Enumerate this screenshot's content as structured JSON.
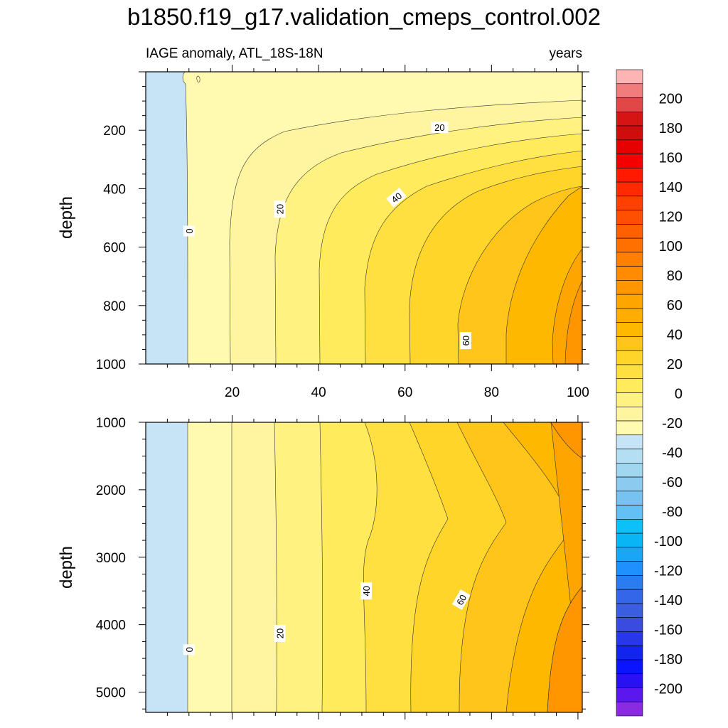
{
  "title": "b1850.f19_g17.validation_cmeps_control.002",
  "subtitle_left": "IAGE anomaly, ATL_18S-18N",
  "subtitle_right": "years",
  "chart_data": [
    {
      "type": "heatmap",
      "panel": "upper",
      "ylabel": "depth",
      "xlim": [
        0,
        101
      ],
      "ylim": [
        1000,
        0
      ],
      "y_reversed": true,
      "x_ticks": [
        "20",
        "40",
        "60",
        "80",
        "100"
      ],
      "x_tick_values": [
        20,
        40,
        60,
        80,
        100
      ],
      "y_ticks": [
        "200",
        "400",
        "600",
        "800",
        "1000"
      ],
      "y_tick_values": [
        200,
        400,
        600,
        800,
        1000
      ],
      "contour_interval": 10,
      "contour_labels": [
        {
          "text": "0",
          "x": 10,
          "y": 545
        },
        {
          "text": "20",
          "x": 31,
          "y": 470
        },
        {
          "text": "20",
          "x": 68,
          "y": 190
        },
        {
          "text": "40",
          "x": 58,
          "y": 430
        },
        {
          "text": "60",
          "x": 74,
          "y": 920
        }
      ]
    },
    {
      "type": "heatmap",
      "panel": "lower",
      "ylabel": "depth",
      "xlim": [
        0,
        101
      ],
      "ylim": [
        5300,
        1000
      ],
      "y_reversed": true,
      "y_ticks": [
        "1000",
        "2000",
        "3000",
        "4000",
        "5000"
      ],
      "y_tick_values": [
        1000,
        2000,
        3000,
        4000,
        5000
      ],
      "contour_interval": 10,
      "contour_labels": [
        {
          "text": "0",
          "x": 10,
          "y": 4370
        },
        {
          "text": "20",
          "x": 31,
          "y": 4130
        },
        {
          "text": "40",
          "x": 51,
          "y": 3500
        },
        {
          "text": "60",
          "x": 73,
          "y": 3630
        }
      ]
    }
  ],
  "colorbar": {
    "labels": [
      "200",
      "180",
      "160",
      "140",
      "120",
      "100",
      "80",
      "60",
      "40",
      "20",
      "0",
      "-20",
      "-40",
      "-60",
      "-80",
      "-100",
      "-120",
      "-140",
      "-160",
      "-180",
      "-200"
    ],
    "colors": [
      "#fcb4b4",
      "#f07c7c",
      "#e04848",
      "#d61414",
      "#d00c0c",
      "#e60000",
      "#f50000",
      "#ff1a00",
      "#ff2a00",
      "#ff4000",
      "#ff4f00",
      "#ff6000",
      "#ff7000",
      "#ff8000",
      "#ff8c00",
      "#ff9600",
      "#ffa500",
      "#ffae00",
      "#ffb800",
      "#ffc51a",
      "#ffd52a",
      "#ffe040",
      "#ffeb5c",
      "#fff280",
      "#fff5a0",
      "#fffab0",
      "#c6e4f5",
      "#b4def2",
      "#a0d6f0",
      "#8ccbef",
      "#78c2f0",
      "#62c0f4",
      "#0cc0f8",
      "#0ab5f6",
      "#1aa6f5",
      "#1e90ff",
      "#2a7df0",
      "#3366e8",
      "#3b5ee0",
      "#3a4be0",
      "#2838e8",
      "#1424f0",
      "#0a14ff",
      "#2a10f5",
      "#5a18ef",
      "#8a2be2"
    ]
  }
}
